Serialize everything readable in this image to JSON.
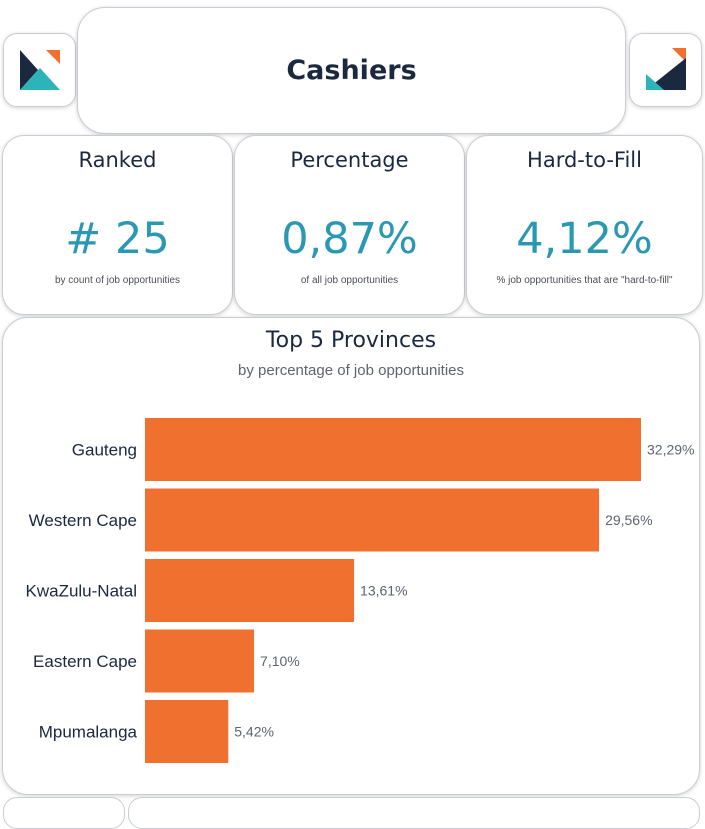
{
  "header": {
    "title": "Cashiers",
    "left_logo": {
      "icon": "brand-logo-icon",
      "colors": [
        "#1a2840",
        "#2bb5b8",
        "#f07030"
      ]
    },
    "right_logo": {
      "icon": "brand-logo-icon",
      "colors": [
        "#1a2840",
        "#2bb5b8",
        "#f07030"
      ]
    }
  },
  "kpis": [
    {
      "label": "Ranked",
      "value": "# 25",
      "sub": "by count of job opportunities"
    },
    {
      "label": "Percentage",
      "value": "0,87%",
      "sub": "of all job opportunities"
    },
    {
      "label": "Hard-to-Fill",
      "value": "4,12%",
      "sub": "% job opportunities that are \"hard-to-fill\""
    }
  ],
  "colors": {
    "accent": "#2a98b3",
    "bar": "#f07030",
    "navy": "#1a2840"
  },
  "chart_data": {
    "type": "bar",
    "orientation": "horizontal",
    "title": "Top 5 Provinces",
    "subtitle": "by percentage of job opportunities",
    "categories": [
      "Gauteng",
      "Western Cape",
      "KwaZulu-Natal",
      "Eastern Cape",
      "Mpumalanga"
    ],
    "values": [
      32.29,
      29.56,
      13.61,
      7.1,
      5.42
    ],
    "value_labels": [
      "32,29%",
      "29,56%",
      "13,61%",
      "7,10%",
      "5,42%"
    ],
    "xlim": [
      0,
      32.29
    ],
    "grid": false,
    "legend": "none"
  }
}
